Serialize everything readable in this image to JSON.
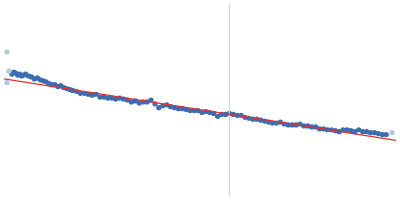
{
  "chart_data": {
    "type": "scatter",
    "xlim": [
      0,
      400
    ],
    "ylim": [
      0,
      200
    ],
    "grid": false,
    "tick_labels": false,
    "series": [
      {
        "type": "line",
        "color": "#c9d6e8",
        "x": [
          230,
          230
        ],
        "values": [
          0,
          200
        ]
      },
      {
        "type": "scatter",
        "color": "#b3c9de",
        "marker": "circle",
        "x": [
          3,
          3,
          5,
          396
        ],
        "values": [
          150,
          118,
          130,
          66
        ]
      },
      {
        "type": "scatter",
        "color": "#3b6db3",
        "marker": "circle",
        "x": [
          8,
          10,
          12,
          14,
          16,
          18,
          20,
          22,
          25,
          28,
          31,
          34,
          37,
          40,
          43,
          46,
          49,
          52,
          55,
          58,
          61,
          64,
          67,
          70,
          74,
          78,
          82,
          86,
          90,
          94,
          98,
          102,
          106,
          110,
          114,
          118,
          122,
          126,
          130,
          134,
          138,
          142,
          146,
          150,
          154,
          158,
          162,
          166,
          170,
          174,
          178,
          182,
          186,
          190,
          194,
          198,
          202,
          206,
          210,
          214,
          218,
          222,
          226,
          230,
          234,
          238,
          242,
          246,
          250,
          254,
          258,
          262,
          266,
          270,
          274,
          278,
          282,
          286,
          290,
          294,
          298,
          302,
          306,
          310,
          314,
          318,
          322,
          326,
          330,
          334,
          338,
          342,
          346,
          350,
          354,
          358,
          362,
          366,
          370,
          374,
          378,
          382,
          386,
          390
        ],
        "values": [
          127,
          129,
          128,
          126,
          127,
          125,
          126,
          127,
          125,
          124,
          122,
          123,
          121,
          120,
          119,
          117,
          116,
          116,
          114,
          115,
          113,
          112,
          111,
          110,
          109,
          107,
          107,
          106,
          105,
          106,
          103,
          103,
          102,
          102,
          101,
          102,
          101,
          100,
          98,
          99,
          97,
          98,
          98,
          100,
          96,
          92,
          94,
          95,
          93,
          92,
          91,
          91,
          90,
          89,
          89,
          89,
          87,
          88,
          87,
          86,
          83,
          85,
          85,
          86,
          85,
          84,
          84,
          82,
          81,
          80,
          80,
          79,
          78,
          77,
          76,
          76,
          77,
          75,
          74,
          74,
          74,
          75,
          73,
          73,
          72,
          72,
          70,
          70,
          69,
          69,
          68,
          67,
          69,
          69,
          68,
          67,
          69,
          67,
          67,
          66,
          66,
          65,
          64,
          64
        ]
      },
      {
        "type": "line",
        "color": "#e03030",
        "x": [
          0,
          400
        ],
        "values": [
          122,
          58
        ]
      }
    ]
  }
}
